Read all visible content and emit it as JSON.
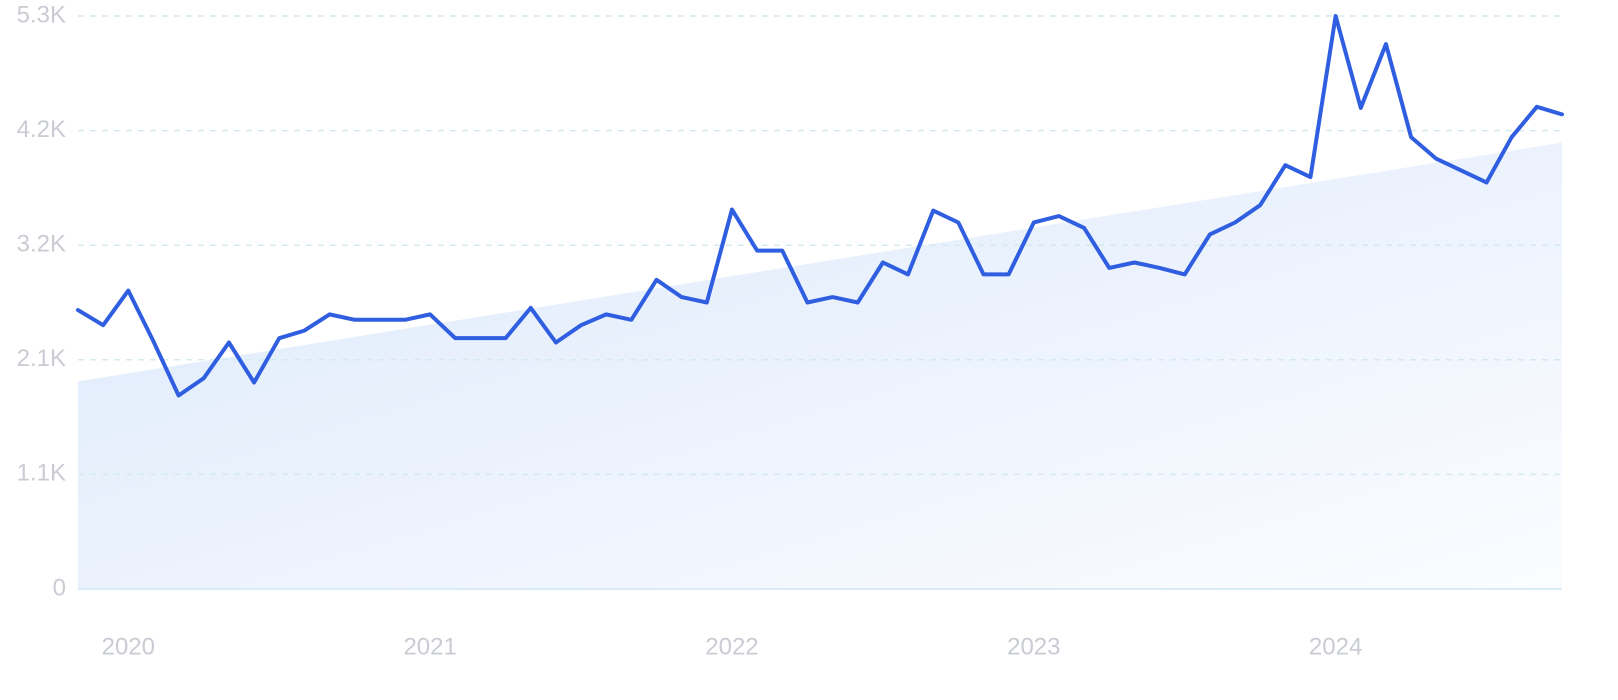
{
  "chart_data": {
    "type": "line",
    "categories": [
      null,
      null,
      "2020",
      null,
      null,
      null,
      null,
      null,
      null,
      null,
      null,
      null,
      null,
      null,
      "2021",
      null,
      null,
      null,
      null,
      null,
      null,
      null,
      null,
      null,
      null,
      null,
      "2022",
      null,
      null,
      null,
      null,
      null,
      null,
      null,
      null,
      null,
      null,
      null,
      "2023",
      null,
      null,
      null,
      null,
      null,
      null,
      null,
      null,
      null,
      null,
      null,
      "2024",
      null,
      null,
      null,
      null,
      null,
      null,
      null,
      null,
      null
    ],
    "values": [
      2580,
      2440,
      2760,
      2290,
      1790,
      1950,
      2280,
      1910,
      2320,
      2390,
      2540,
      2490,
      2490,
      2490,
      2540,
      2320,
      2320,
      2320,
      2600,
      2280,
      2440,
      2540,
      2490,
      2860,
      2700,
      2650,
      3510,
      3130,
      3130,
      2650,
      2700,
      2650,
      3020,
      2910,
      3500,
      3390,
      2910,
      2910,
      3390,
      3450,
      3340,
      2970,
      3020,
      2970,
      2910,
      3280,
      3390,
      3550,
      3920,
      3810,
      5300,
      4450,
      5040,
      4180,
      3980,
      3870,
      3760,
      4180,
      4460,
      4390
    ],
    "trend_values": [
      1920,
      4130
    ],
    "color": "#2f5ee0",
    "ylim": [
      0,
      5300
    ],
    "yticks": [
      0,
      {
        "value": 1060,
        "label": "1.1K"
      },
      {
        "value": 2120,
        "label": "2.1K"
      },
      {
        "value": 3180,
        "label": "3.2K"
      },
      {
        "value": 4240,
        "label": "4.2K"
      },
      {
        "value": 5300,
        "label": "5.3K"
      }
    ],
    "grid": true
  }
}
